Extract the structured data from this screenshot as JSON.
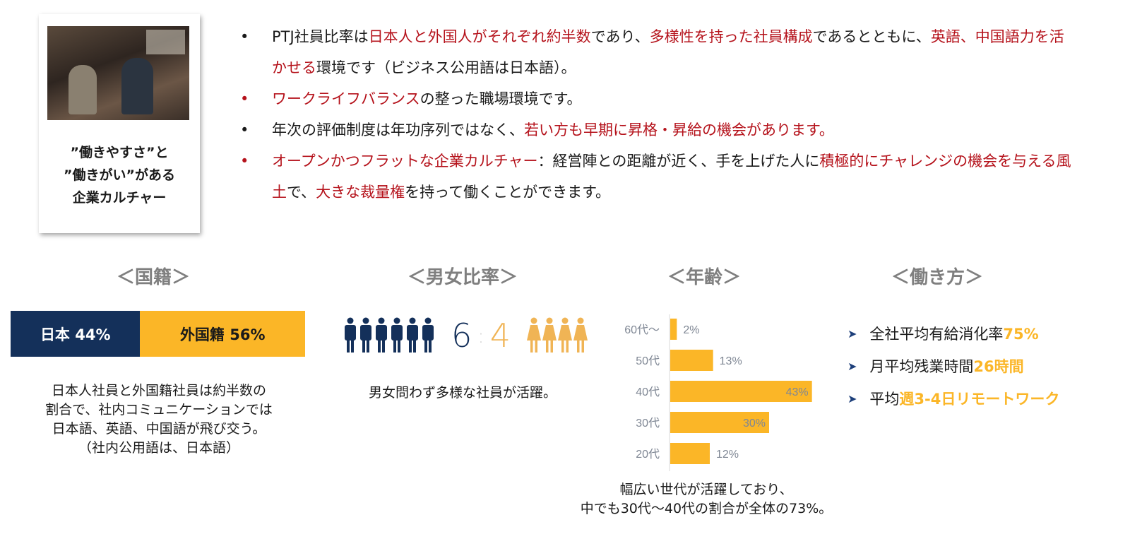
{
  "card": {
    "caption_lines": [
      "”働きやすさ”と",
      "”働きがい”がある",
      "企業カルチャー"
    ]
  },
  "bullets": [
    {
      "dot_color": "#1a1a1a",
      "segments": [
        {
          "t": "PTJ社員比率は",
          "red": false
        },
        {
          "t": "日本人と外国人がそれぞれ約半数",
          "red": true
        },
        {
          "t": "であり、",
          "red": false
        },
        {
          "t": "多様性を持った社員構成",
          "red": true
        },
        {
          "t": "であるとともに、",
          "red": false
        },
        {
          "t": "英語、中国語力を活かせる",
          "red": true
        },
        {
          "t": "環境です（ビジネス公用語は日本語）。",
          "red": false
        }
      ]
    },
    {
      "dot_color": "#b5121b",
      "segments": [
        {
          "t": "ワークライフバランス",
          "red": true
        },
        {
          "t": "の整った職場環境です。",
          "red": false
        }
      ]
    },
    {
      "dot_color": "#1a1a1a",
      "segments": [
        {
          "t": "年次の評価制度は年功序列ではなく、",
          "red": false
        },
        {
          "t": "若い方も早期に昇格・昇給の機会があります。",
          "red": true
        }
      ]
    },
    {
      "dot_color": "#b5121b",
      "segments": [
        {
          "t": "オープンかつフラットな企業カルチャー",
          "red": true
        },
        {
          "t": "：経営陣との距離が近く、手を上げた人に",
          "red": false
        },
        {
          "t": "積極的にチャレンジの機会を与える風土",
          "red": true
        },
        {
          "t": "で、",
          "red": false
        },
        {
          "t": "大きな裁量権",
          "red": true
        },
        {
          "t": "を持って働くことができます。",
          "red": false
        }
      ]
    }
  ],
  "sections": {
    "nationality": {
      "heading": "＜国籍＞",
      "japan_label": "日本 44%",
      "foreign_label": "外国籍 56%",
      "japan_pct": 44,
      "foreign_pct": 56,
      "desc": [
        "日本人社員と外国籍社員は約半数の",
        "割合で、社内コミュニケーションでは",
        "日本語、英語、中国語が飛び交う。",
        "（社内公用語は、日本語）"
      ]
    },
    "gender": {
      "heading": "＜男女比率＞",
      "male": "6",
      "sep": ":",
      "female": "4",
      "male_icons": 6,
      "female_icons": 4,
      "desc": "男女問わず多様な社員が活躍。"
    },
    "age": {
      "heading": "＜年齢＞",
      "desc": [
        "幅広い世代が活躍しており、",
        "中でも30代～40代の割合が全体の73%。"
      ]
    },
    "workstyle": {
      "heading": "＜働き方＞",
      "items": [
        {
          "text": "全社平均有給消化率",
          "highlight": "75%"
        },
        {
          "text": "月平均残業時間",
          "highlight": "26時間"
        },
        {
          "text": "平均",
          "highlight": "週3-4日リモートワーク"
        }
      ]
    }
  },
  "colors": {
    "navy": "#14305a",
    "yellow": "#fbb627",
    "red": "#b5121b",
    "gray": "#7f7f7f"
  },
  "chart_data": {
    "type": "bar",
    "orientation": "horizontal",
    "categories": [
      "60代～",
      "50代",
      "40代",
      "30代",
      "20代"
    ],
    "values": [
      2,
      13,
      43,
      30,
      12
    ],
    "labels": [
      "2%",
      "13%",
      "43%",
      "30%",
      "12%"
    ],
    "title": "",
    "xlabel": "",
    "ylabel": "",
    "xlim": [
      0,
      45
    ]
  }
}
